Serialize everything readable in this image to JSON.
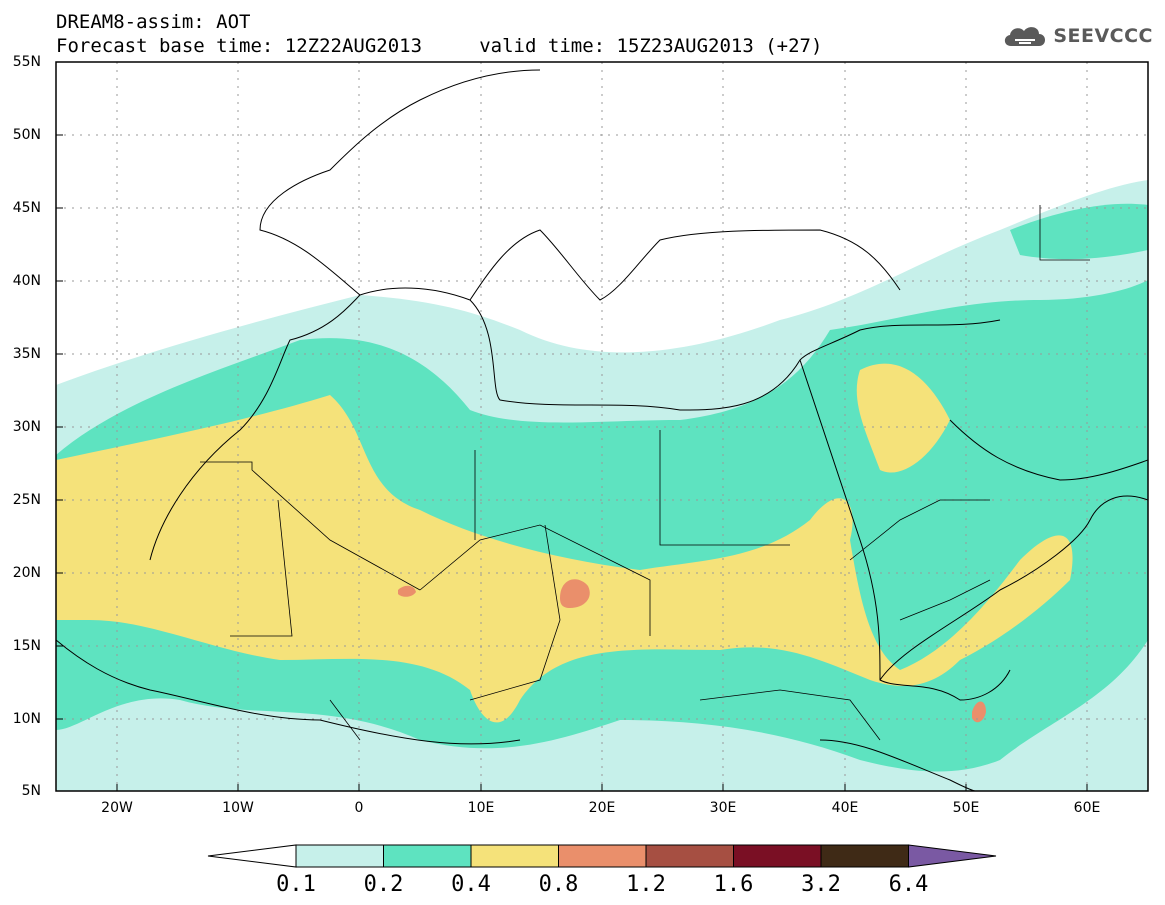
{
  "header": {
    "title_line1": "DREAM8-assim: AOT",
    "title_line2": "Forecast base time: 12Z22AUG2013     valid time: 15Z23AUG2013 (+27)",
    "logo_text": "SEEVCCC"
  },
  "map": {
    "lat_labels": [
      "55N",
      "50N",
      "45N",
      "40N",
      "35N",
      "30N",
      "25N",
      "20N",
      "15N",
      "10N",
      "5N"
    ],
    "lon_labels": [
      "20W",
      "10W",
      "0",
      "10E",
      "20E",
      "30E",
      "40E",
      "50E",
      "60E"
    ]
  },
  "colorbar": {
    "labels": [
      "0.1",
      "0.2",
      "0.4",
      "0.8",
      "1.2",
      "1.6",
      "3.2",
      "6.4"
    ],
    "colors": [
      "#c6f0ea",
      "#5ee3c0",
      "#f5e27a",
      "#ea8f6b",
      "#a64f42",
      "#7a0f24",
      "#3f2a16",
      "#7a59a3"
    ]
  }
}
